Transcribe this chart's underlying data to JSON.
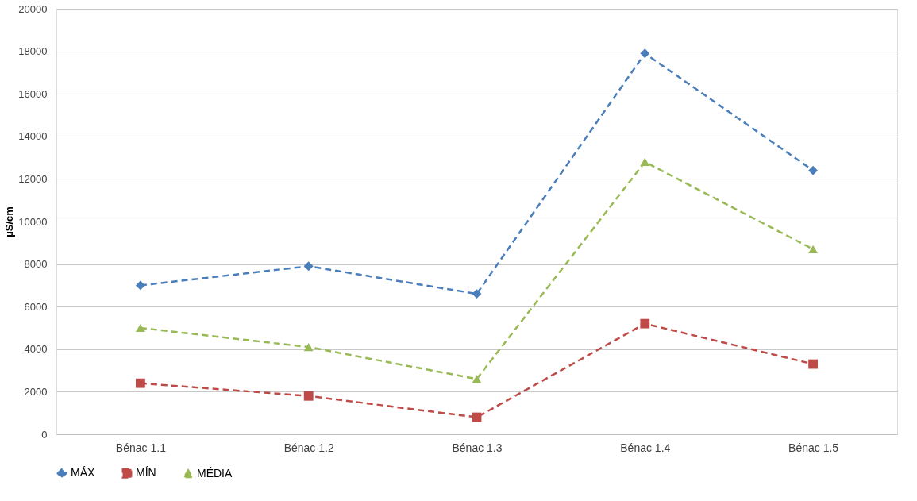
{
  "chart_data": {
    "type": "line",
    "ylabel": "µS/cm",
    "categories": [
      "Bénac 1.1",
      "Bénac 1.2",
      "Bénac 1.3",
      "Bénac 1.4",
      "Bénac 1.5"
    ],
    "series": [
      {
        "name": "MÁX",
        "color": "#4a7ebb",
        "marker": "diamond",
        "values": [
          7000,
          7900,
          6600,
          17900,
          12400
        ]
      },
      {
        "name": "MÍN",
        "color": "#be4b48",
        "marker": "square",
        "values": [
          2400,
          1800,
          800,
          5200,
          3300
        ]
      },
      {
        "name": "MÉDIA",
        "color": "#98b954",
        "marker": "triangle",
        "values": [
          5000,
          4100,
          2600,
          12800,
          8700
        ]
      }
    ],
    "ylim": [
      0,
      20000
    ],
    "yticks": [
      0,
      2000,
      4000,
      6000,
      8000,
      10000,
      12000,
      14000,
      16000,
      18000,
      20000
    ],
    "grid": "y",
    "legend": "bottom",
    "line_style": "dashed"
  }
}
